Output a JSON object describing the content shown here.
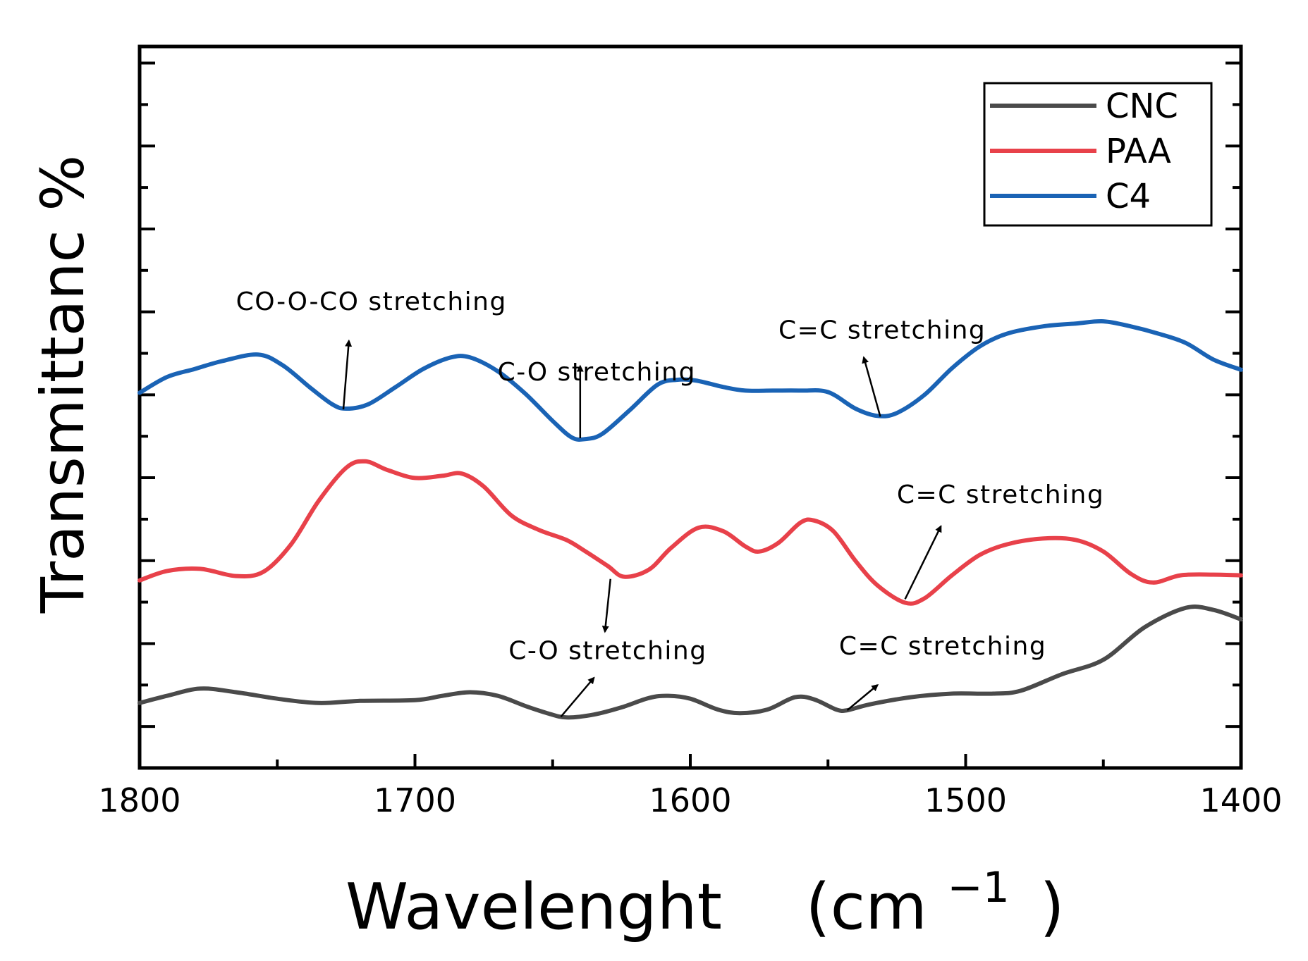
{
  "chart_data": {
    "type": "line",
    "title": "",
    "xlabel": "Wavelenght",
    "xlabel_unit": "(cm",
    "xlabel_unit_sup": "−1",
    "xlabel_unit_close": ")",
    "ylabel": "Transmittanc %",
    "xlim": [
      1800,
      1400
    ],
    "ylim": [
      0,
      100
    ],
    "x_ticks": [
      1800,
      1700,
      1600,
      1500,
      1400
    ],
    "x_tick_labels": [
      "1800",
      "1700",
      "1600",
      "1500",
      "1400"
    ],
    "y_tick_labels_shown": false,
    "legend_position": "top-right",
    "series": [
      {
        "name": "CNC",
        "color": "#4a4a4a",
        "points": [
          [
            1800,
            9
          ],
          [
            1790,
            10
          ],
          [
            1778,
            11
          ],
          [
            1765,
            10.5
          ],
          [
            1750,
            9.6
          ],
          [
            1735,
            9
          ],
          [
            1720,
            9.3
          ],
          [
            1700,
            9.4
          ],
          [
            1690,
            10
          ],
          [
            1680,
            10.5
          ],
          [
            1670,
            10
          ],
          [
            1660,
            8.6
          ],
          [
            1652,
            7.6
          ],
          [
            1645,
            7
          ],
          [
            1635,
            7.4
          ],
          [
            1625,
            8.4
          ],
          [
            1615,
            9.7
          ],
          [
            1608,
            10
          ],
          [
            1600,
            9.6
          ],
          [
            1590,
            8.1
          ],
          [
            1582,
            7.6
          ],
          [
            1572,
            8.1
          ],
          [
            1562,
            9.8
          ],
          [
            1555,
            9.5
          ],
          [
            1547,
            8.1
          ],
          [
            1543,
            8
          ],
          [
            1535,
            8.8
          ],
          [
            1520,
            9.8
          ],
          [
            1505,
            10.3
          ],
          [
            1490,
            10.3
          ],
          [
            1480,
            10.7
          ],
          [
            1465,
            13
          ],
          [
            1450,
            15
          ],
          [
            1435,
            19.5
          ],
          [
            1420,
            22.2
          ],
          [
            1410,
            21.9
          ],
          [
            1400,
            20.6
          ]
        ]
      },
      {
        "name": "PAA",
        "color": "#e8414a",
        "points": [
          [
            1800,
            26
          ],
          [
            1790,
            27.3
          ],
          [
            1778,
            27.6
          ],
          [
            1765,
            26.6
          ],
          [
            1755,
            27.2
          ],
          [
            1745,
            31
          ],
          [
            1735,
            37
          ],
          [
            1725,
            41.6
          ],
          [
            1718,
            42.5
          ],
          [
            1710,
            41.3
          ],
          [
            1700,
            40.2
          ],
          [
            1690,
            40.5
          ],
          [
            1683,
            40.8
          ],
          [
            1675,
            39
          ],
          [
            1665,
            35
          ],
          [
            1655,
            33
          ],
          [
            1645,
            31.6
          ],
          [
            1638,
            30
          ],
          [
            1630,
            28
          ],
          [
            1624,
            26.5
          ],
          [
            1615,
            27.5
          ],
          [
            1607,
            30.5
          ],
          [
            1597,
            33.3
          ],
          [
            1588,
            32.8
          ],
          [
            1580,
            30.7
          ],
          [
            1575,
            30
          ],
          [
            1568,
            31.2
          ],
          [
            1560,
            34
          ],
          [
            1555,
            34.3
          ],
          [
            1548,
            32.8
          ],
          [
            1540,
            28.7
          ],
          [
            1532,
            25.3
          ],
          [
            1522,
            22.9
          ],
          [
            1515,
            23.5
          ],
          [
            1505,
            26.7
          ],
          [
            1495,
            29.5
          ],
          [
            1485,
            31
          ],
          [
            1472,
            31.8
          ],
          [
            1460,
            31.6
          ],
          [
            1450,
            30
          ],
          [
            1440,
            26.9
          ],
          [
            1432,
            25.7
          ],
          [
            1422,
            26.7
          ],
          [
            1410,
            26.8
          ],
          [
            1400,
            26.7
          ]
        ]
      },
      {
        "name": "C4",
        "color": "#1a63b5",
        "points": [
          [
            1800,
            52
          ],
          [
            1790,
            54.2
          ],
          [
            1780,
            55.3
          ],
          [
            1770,
            56.4
          ],
          [
            1757,
            57.3
          ],
          [
            1748,
            55.8
          ],
          [
            1738,
            52.7
          ],
          [
            1730,
            50.4
          ],
          [
            1725,
            49.8
          ],
          [
            1717,
            50.4
          ],
          [
            1707,
            52.8
          ],
          [
            1697,
            55.3
          ],
          [
            1687,
            56.9
          ],
          [
            1680,
            56.9
          ],
          [
            1670,
            55
          ],
          [
            1660,
            51.9
          ],
          [
            1650,
            48.1
          ],
          [
            1643,
            45.8
          ],
          [
            1638,
            45.6
          ],
          [
            1632,
            46.3
          ],
          [
            1622,
            49.6
          ],
          [
            1612,
            53.1
          ],
          [
            1605,
            53.8
          ],
          [
            1598,
            53.7
          ],
          [
            1588,
            52.8
          ],
          [
            1580,
            52.3
          ],
          [
            1570,
            52.3
          ],
          [
            1560,
            52.3
          ],
          [
            1550,
            52.1
          ],
          [
            1540,
            49.8
          ],
          [
            1532,
            48.8
          ],
          [
            1525,
            49.2
          ],
          [
            1515,
            51.7
          ],
          [
            1505,
            55.4
          ],
          [
            1495,
            58.4
          ],
          [
            1485,
            60.2
          ],
          [
            1472,
            61.2
          ],
          [
            1460,
            61.6
          ],
          [
            1450,
            61.9
          ],
          [
            1440,
            61.2
          ],
          [
            1430,
            60.2
          ],
          [
            1420,
            58.9
          ],
          [
            1410,
            56.6
          ],
          [
            1400,
            55.2
          ]
        ]
      }
    ],
    "annotations": [
      {
        "text": "CO-O-CO stretching",
        "label_x": 1765,
        "label_y": 63.5,
        "arrow_from": [
          1726,
          49.7
        ],
        "arrow_to": [
          1724,
          59.2
        ]
      },
      {
        "text": "C-O stretching",
        "label_x": 1670,
        "label_y": 53.7,
        "arrow_from": [
          1640,
          45.7
        ],
        "arrow_to": [
          1640,
          55.7
        ]
      },
      {
        "text": "C=C stretching",
        "label_x": 1568,
        "label_y": 59.5,
        "arrow_from": [
          1531,
          48.7
        ],
        "arrow_to": [
          1537,
          56.9
        ]
      },
      {
        "text": "C=C stretching",
        "label_x": 1525,
        "label_y": 36.7,
        "arrow_from": [
          1522,
          23.4
        ],
        "arrow_to": [
          1509,
          33.5
        ]
      },
      {
        "text": "C-O stretching",
        "label_x": 1666,
        "label_y": 15.1,
        "arrow_from": [
          1629,
          26.2
        ],
        "arrow_to": [
          1631,
          18.9
        ]
      },
      {
        "text": "C=C stretching",
        "label_x": 1546,
        "label_y": 15.7,
        "arrow_from": [
          1543,
          8
        ],
        "arrow_to": [
          1532,
          11.5
        ]
      },
      {
        "text": "",
        "label_x": 0,
        "label_y": 0,
        "arrow_from": [
          1647,
          7.1
        ],
        "arrow_to": [
          1635,
          12.5
        ]
      }
    ],
    "grid": false
  }
}
